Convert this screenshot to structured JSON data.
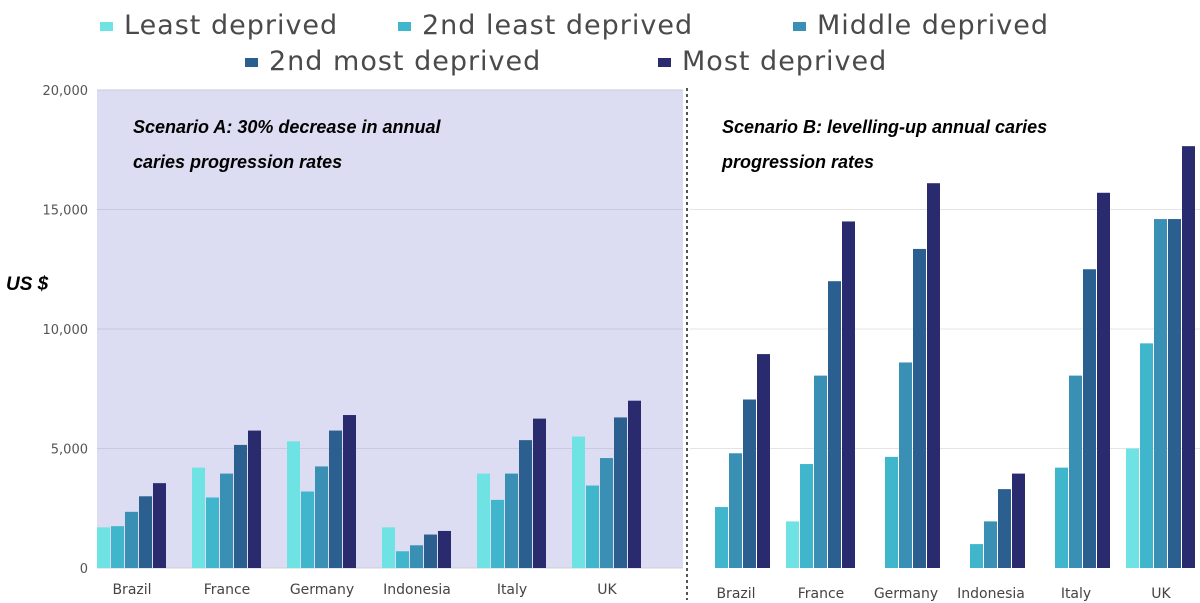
{
  "chart_data": {
    "type": "bar",
    "legend": {
      "placement": "top",
      "entries": [
        "Least deprived",
        "2nd least deprived",
        "Middle deprived",
        "2nd most deprived",
        "Most deprived"
      ]
    },
    "ylabel": "US $",
    "ylim": [
      0,
      20000
    ],
    "yticks": [
      "0",
      "5,000",
      "10,000",
      "15,000",
      "20,000"
    ],
    "yticks_values": [
      0,
      5000,
      10000,
      15000,
      20000
    ],
    "grid": true,
    "colors": [
      "#6fe3e3",
      "#3fb6cc",
      "#3a8fb5",
      "#2a5f8f",
      "#2a2a6e"
    ],
    "panel_a_background": "#dcdcf2",
    "panels": [
      {
        "annotation": [
          "Scenario A: 30% decrease in annual",
          "caries progression rates"
        ],
        "categories": [
          "Brazil",
          "France",
          "Germany",
          "Indonesia",
          "Italy",
          "UK"
        ],
        "series": [
          {
            "name": "Least deprived",
            "values": [
              1700,
              4200,
              5300,
              1700,
              3950,
              5500
            ]
          },
          {
            "name": "2nd least deprived",
            "values": [
              1750,
              2950,
              3200,
              700,
              2850,
              3450
            ]
          },
          {
            "name": "Middle deprived",
            "values": [
              2350,
              3950,
              4250,
              950,
              3950,
              4600
            ]
          },
          {
            "name": "2nd most deprived",
            "values": [
              3000,
              5150,
              5750,
              1400,
              5350,
              6300
            ]
          },
          {
            "name": "Most deprived",
            "values": [
              3550,
              5750,
              6400,
              1550,
              6250,
              7000
            ]
          }
        ]
      },
      {
        "annotation": [
          "Scenario B: levelling-up annual caries",
          "progression rates"
        ],
        "categories": [
          "Brazil",
          "France",
          "Germany",
          "Indonesia",
          "Italy",
          "UK"
        ],
        "series": [
          {
            "name": "Least deprived",
            "values": [
              0,
              1950,
              0,
              0,
              0,
              5000
            ]
          },
          {
            "name": "2nd least deprived",
            "values": [
              2550,
              4350,
              4650,
              1000,
              4200,
              9400
            ]
          },
          {
            "name": "Middle deprived",
            "values": [
              4800,
              8050,
              8600,
              1950,
              8050,
              14600
            ]
          },
          {
            "name": "2nd most deprived",
            "values": [
              7050,
              12000,
              13350,
              3300,
              12500,
              14600
            ]
          },
          {
            "name": "Most deprived",
            "values": [
              8950,
              14500,
              16100,
              3950,
              15700,
              17650
            ]
          }
        ]
      }
    ]
  }
}
